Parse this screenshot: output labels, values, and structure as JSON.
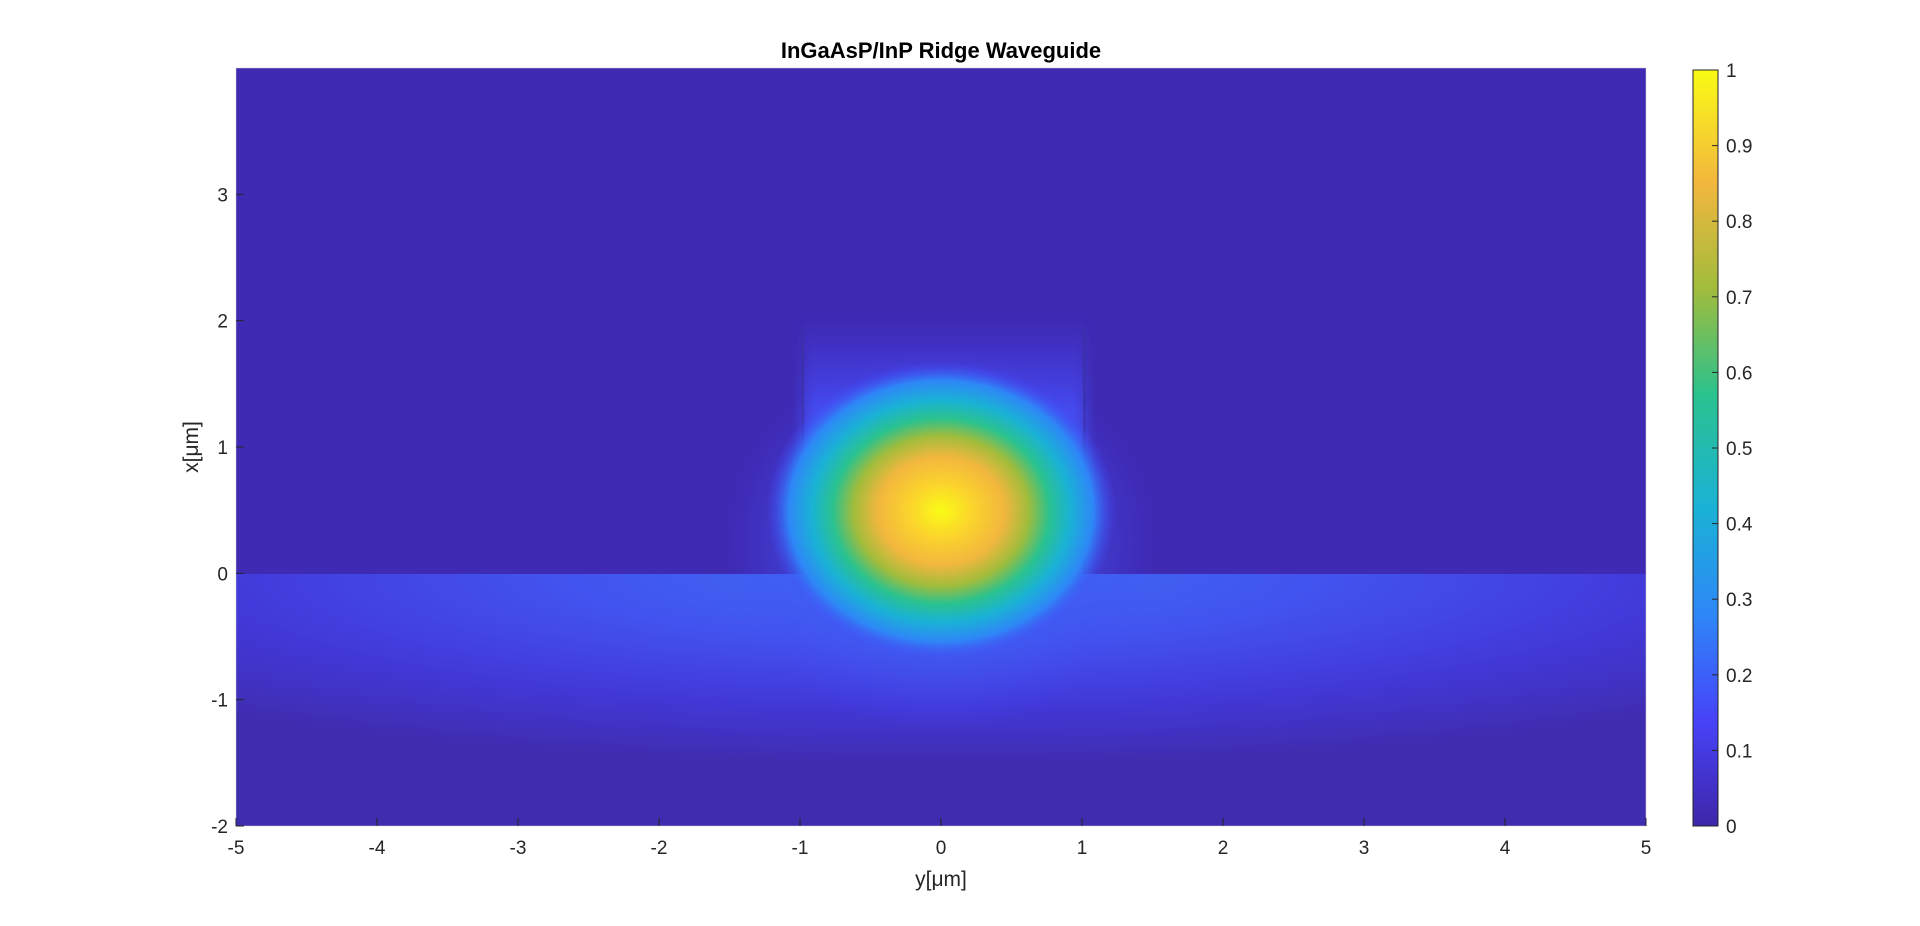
{
  "chart_data": {
    "type": "heatmap",
    "title": "InGaAsP/InP Ridge Waveguide",
    "xlabel": "y[μm]",
    "ylabel": "x[μm]",
    "xlim": [
      -5,
      5
    ],
    "ylim": [
      -2,
      4
    ],
    "x_ticks": [
      -5,
      -4,
      -3,
      -2,
      -1,
      0,
      1,
      2,
      3,
      4,
      5
    ],
    "y_ticks": [
      -2,
      -1,
      0,
      1,
      2,
      3
    ],
    "colorbar": {
      "range": [
        0,
        1
      ],
      "ticks": [
        0,
        0.1,
        0.2,
        0.3,
        0.4,
        0.5,
        0.6,
        0.7,
        0.8,
        0.9,
        1
      ],
      "colormap": "parula",
      "colors": [
        "#3e26a8",
        "#4743f8",
        "#2e87f7",
        "#1ab2d5",
        "#2ac28f",
        "#a1bc3c",
        "#f2b73e",
        "#f9fb15"
      ]
    },
    "structure": {
      "ridge_y_range": [
        -1,
        1
      ],
      "ridge_x_range": [
        0,
        2
      ],
      "substrate_top_x": 0,
      "substrate_bottom_x": -2
    },
    "mode": {
      "peak_value": 1,
      "peak_y": 0,
      "peak_x": 0.5
    },
    "grid": false
  }
}
